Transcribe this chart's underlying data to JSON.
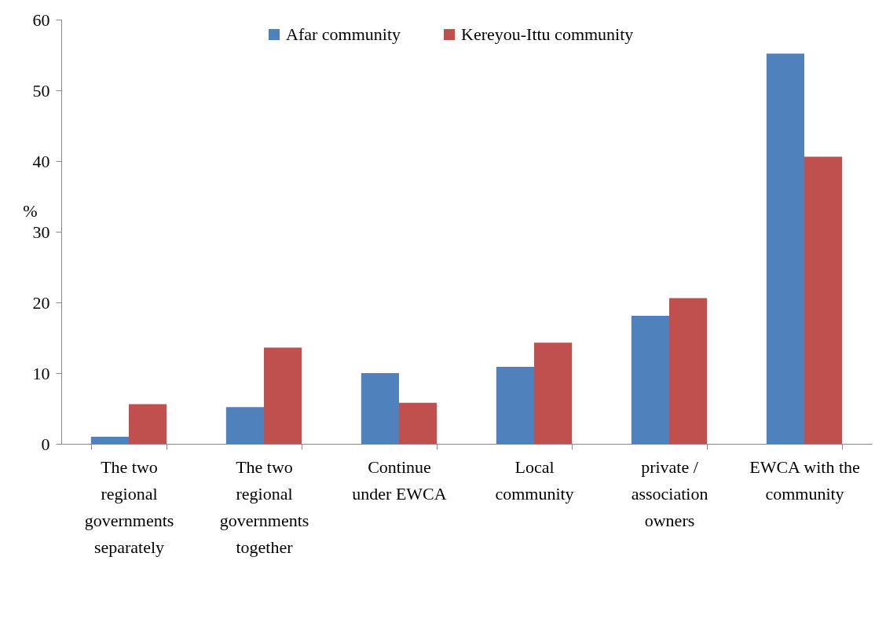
{
  "chart_data": {
    "type": "bar",
    "ylabel": "%",
    "categories": [
      "The two regional governments separately",
      "The two regional governments together",
      "Continue under EWCA",
      "Local community",
      "private / association owners",
      "EWCA with the community"
    ],
    "series": [
      {
        "name": "Afar community",
        "color": "#4f81bd",
        "values": [
          1.0,
          5.2,
          10.0,
          10.9,
          18.1,
          55.2
        ]
      },
      {
        "name": "Kereyou-Ittu community",
        "color": "#c0504d",
        "values": [
          5.6,
          13.6,
          5.8,
          14.3,
          20.6,
          40.6
        ]
      }
    ],
    "ylim": [
      0,
      60
    ],
    "yticks": [
      0,
      10,
      20,
      30,
      40,
      50,
      60
    ],
    "grid": false,
    "legend": "top"
  }
}
